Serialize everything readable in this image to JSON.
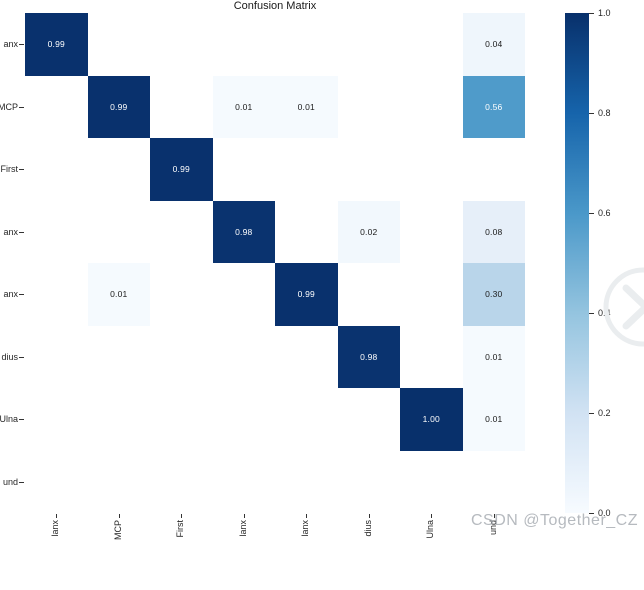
{
  "title": "Confusion Matrix",
  "watermark": {
    "text": "CSDN @Together_CZ",
    "logo_icon": "chevron-right-circle-icon"
  },
  "chart_data": {
    "type": "heatmap",
    "title": "Confusion Matrix",
    "colormap": "Blues",
    "vmin": 0.0,
    "vmax": 1.0,
    "rows": 8,
    "cols": 8,
    "row_labels": [
      "anx",
      "MCP",
      "First",
      "anx",
      "anx",
      "dius",
      "Ulna",
      "und"
    ],
    "col_labels": [
      "lanx",
      "MCP",
      "First",
      "lanx",
      "lanx",
      "dius",
      "Ulna",
      "und"
    ],
    "cells": [
      {
        "row": 0,
        "col": 0,
        "value": "0.99",
        "bg": "#09316d",
        "fg": "#ffffff"
      },
      {
        "row": 0,
        "col": 7,
        "value": "0.04",
        "bg": "#eff6fc",
        "fg": "#1a1a1a"
      },
      {
        "row": 1,
        "col": 1,
        "value": "0.99",
        "bg": "#09316d",
        "fg": "#ffffff"
      },
      {
        "row": 1,
        "col": 3,
        "value": "0.01",
        "bg": "#f5fafe",
        "fg": "#1a1a1a"
      },
      {
        "row": 1,
        "col": 4,
        "value": "0.01",
        "bg": "#f5fafe",
        "fg": "#1a1a1a"
      },
      {
        "row": 1,
        "col": 7,
        "value": "0.56",
        "bg": "#4f9bca",
        "fg": "#ffffff"
      },
      {
        "row": 2,
        "col": 2,
        "value": "0.99",
        "bg": "#09316d",
        "fg": "#ffffff"
      },
      {
        "row": 3,
        "col": 3,
        "value": "0.98",
        "bg": "#0a336f",
        "fg": "#ffffff"
      },
      {
        "row": 3,
        "col": 5,
        "value": "0.02",
        "bg": "#f2f8fd",
        "fg": "#1a1a1a"
      },
      {
        "row": 3,
        "col": 7,
        "value": "0.08",
        "bg": "#e6eff9",
        "fg": "#1a1a1a"
      },
      {
        "row": 4,
        "col": 1,
        "value": "0.01",
        "bg": "#f5fafe",
        "fg": "#1a1a1a"
      },
      {
        "row": 4,
        "col": 4,
        "value": "0.99",
        "bg": "#09316d",
        "fg": "#ffffff"
      },
      {
        "row": 4,
        "col": 7,
        "value": "0.30",
        "bg": "#b9d5ea",
        "fg": "#1a1a1a"
      },
      {
        "row": 5,
        "col": 5,
        "value": "0.98",
        "bg": "#0a336f",
        "fg": "#ffffff"
      },
      {
        "row": 5,
        "col": 7,
        "value": "0.01",
        "bg": "#f5fafe",
        "fg": "#1a1a1a"
      },
      {
        "row": 6,
        "col": 6,
        "value": "1.00",
        "bg": "#08306b",
        "fg": "#ffffff"
      },
      {
        "row": 6,
        "col": 7,
        "value": "0.01",
        "bg": "#f5fafe",
        "fg": "#1a1a1a"
      }
    ],
    "colorbar": {
      "tick_labels": [
        "1.0",
        "0.8",
        "0.6",
        "0.4",
        "0.2",
        "0.0"
      ],
      "gradient_stops": [
        [
          "1.0",
          "#08306b"
        ],
        [
          "0.8",
          "#1664ab"
        ],
        [
          "0.6",
          "#4a98c9"
        ],
        [
          "0.4",
          "#94c4df"
        ],
        [
          "0.2",
          "#d1e2f3"
        ],
        [
          "0.0",
          "#f7fbff"
        ]
      ],
      "legend_position": "right"
    },
    "grid": false,
    "empty_cell_color": "#ffffff"
  }
}
